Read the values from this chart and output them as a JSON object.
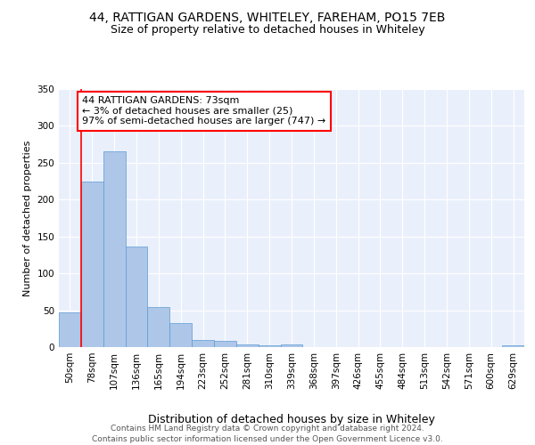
{
  "title1": "44, RATTIGAN GARDENS, WHITELEY, FAREHAM, PO15 7EB",
  "title2": "Size of property relative to detached houses in Whiteley",
  "xlabel": "Distribution of detached houses by size in Whiteley",
  "ylabel": "Number of detached properties",
  "categories": [
    "50sqm",
    "78sqm",
    "107sqm",
    "136sqm",
    "165sqm",
    "194sqm",
    "223sqm",
    "252sqm",
    "281sqm",
    "310sqm",
    "339sqm",
    "368sqm",
    "397sqm",
    "426sqm",
    "455sqm",
    "484sqm",
    "513sqm",
    "542sqm",
    "571sqm",
    "600sqm",
    "629sqm"
  ],
  "values": [
    47,
    224,
    265,
    136,
    54,
    33,
    10,
    8,
    4,
    3,
    4,
    0,
    0,
    0,
    0,
    0,
    0,
    0,
    0,
    0,
    3
  ],
  "bar_color": "#aec6e8",
  "bar_edge_color": "#5b9bd5",
  "annotation_box_text": "44 RATTIGAN GARDENS: 73sqm\n← 3% of detached houses are smaller (25)\n97% of semi-detached houses are larger (747) →",
  "annotation_box_color": "white",
  "annotation_box_edge_color": "red",
  "vline_color": "red",
  "ylim": [
    0,
    350
  ],
  "yticks": [
    0,
    50,
    100,
    150,
    200,
    250,
    300,
    350
  ],
  "background_color": "#eaf0fb",
  "grid_color": "#ffffff",
  "footer_text": "Contains HM Land Registry data © Crown copyright and database right 2024.\nContains public sector information licensed under the Open Government Licence v3.0.",
  "title1_fontsize": 10,
  "title2_fontsize": 9,
  "xlabel_fontsize": 9,
  "ylabel_fontsize": 8,
  "tick_fontsize": 7.5,
  "annotation_fontsize": 8,
  "footer_fontsize": 6.5
}
